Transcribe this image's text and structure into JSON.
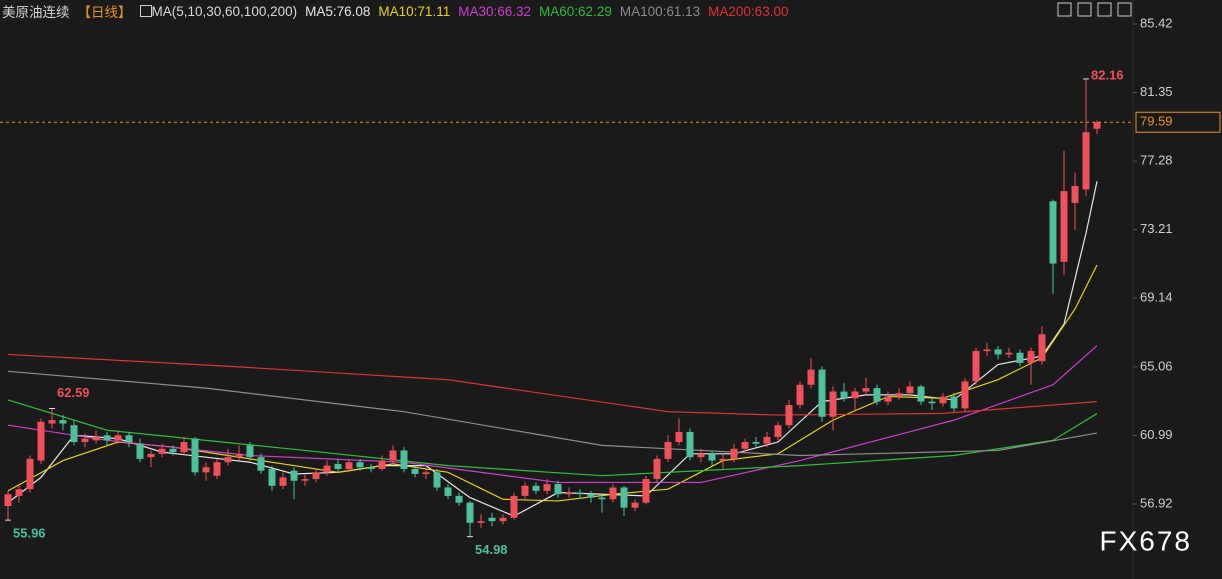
{
  "chart_data": {
    "type": "candlestick",
    "title": "美原油连续",
    "period": "【日线】",
    "indicator": "MA(5,10,30,60,100,200)",
    "watermark": "FX678",
    "up_color": "#f0505a",
    "down_color": "#4cc19e",
    "price_line_color": "#e8932a",
    "ylim": [
      53.0,
      85.78
    ],
    "yticks": [
      85.42,
      81.35,
      77.28,
      73.21,
      69.14,
      65.06,
      60.99,
      56.92
    ],
    "candles": [
      [
        56.8,
        57.7,
        55.96,
        57.5
      ],
      [
        57.4,
        58.0,
        57.0,
        57.8
      ],
      [
        57.8,
        59.8,
        57.6,
        59.6
      ],
      [
        59.5,
        62.0,
        59.3,
        61.8
      ],
      [
        61.7,
        62.59,
        61.4,
        61.9
      ],
      [
        61.9,
        62.2,
        61.3,
        61.7
      ],
      [
        61.6,
        61.9,
        60.4,
        60.6
      ],
      [
        60.6,
        61.1,
        60.3,
        60.8
      ],
      [
        60.7,
        61.3,
        60.5,
        60.9
      ],
      [
        61.0,
        61.2,
        60.4,
        60.7
      ],
      [
        60.7,
        61.3,
        60.5,
        61.0
      ],
      [
        61.0,
        61.2,
        60.3,
        60.6
      ],
      [
        60.5,
        60.8,
        59.4,
        59.6
      ],
      [
        59.7,
        60.1,
        59.1,
        59.9
      ],
      [
        59.9,
        60.5,
        59.7,
        60.2
      ],
      [
        60.2,
        60.4,
        59.8,
        60.0
      ],
      [
        60.0,
        60.9,
        59.8,
        60.6
      ],
      [
        60.8,
        60.9,
        58.6,
        58.8
      ],
      [
        58.8,
        59.4,
        58.3,
        59.1
      ],
      [
        58.6,
        59.6,
        58.4,
        59.4
      ],
      [
        59.4,
        60.2,
        59.2,
        59.7
      ],
      [
        59.7,
        60.4,
        59.5,
        59.9
      ],
      [
        60.4,
        60.6,
        59.5,
        59.7
      ],
      [
        59.7,
        59.9,
        58.7,
        58.9
      ],
      [
        59.0,
        59.2,
        57.7,
        58.0
      ],
      [
        58.0,
        58.8,
        57.8,
        58.5
      ],
      [
        58.9,
        59.1,
        57.2,
        58.3
      ],
      [
        58.3,
        58.7,
        58.0,
        58.4
      ],
      [
        58.4,
        59.0,
        58.2,
        58.8
      ],
      [
        58.8,
        59.5,
        58.6,
        59.2
      ],
      [
        59.3,
        59.6,
        58.8,
        59.0
      ],
      [
        59.0,
        59.6,
        58.8,
        59.4
      ],
      [
        59.4,
        59.6,
        58.9,
        59.1
      ],
      [
        59.1,
        59.3,
        58.8,
        59.0
      ],
      [
        59.0,
        59.8,
        58.9,
        59.5
      ],
      [
        59.5,
        60.4,
        59.3,
        60.1
      ],
      [
        60.1,
        60.3,
        58.8,
        59.0
      ],
      [
        59.0,
        59.2,
        58.5,
        58.7
      ],
      [
        58.7,
        59.1,
        58.4,
        58.8
      ],
      [
        58.8,
        59.0,
        57.7,
        57.9
      ],
      [
        57.9,
        58.1,
        57.2,
        57.4
      ],
      [
        57.4,
        57.6,
        56.8,
        57.0
      ],
      [
        57.0,
        57.1,
        54.98,
        55.8
      ],
      [
        55.8,
        56.3,
        55.5,
        55.9
      ],
      [
        56.1,
        56.4,
        55.6,
        55.9
      ],
      [
        55.9,
        56.3,
        55.7,
        56.1
      ],
      [
        56.1,
        57.6,
        56.0,
        57.4
      ],
      [
        57.4,
        58.2,
        57.2,
        58.0
      ],
      [
        58.0,
        58.2,
        57.5,
        57.7
      ],
      [
        57.7,
        58.4,
        57.5,
        58.1
      ],
      [
        58.1,
        58.3,
        57.3,
        57.5
      ],
      [
        57.5,
        57.9,
        57.3,
        57.6
      ],
      [
        57.6,
        57.8,
        57.2,
        57.5
      ],
      [
        57.5,
        57.7,
        57.0,
        57.3
      ],
      [
        57.3,
        57.5,
        56.4,
        57.2
      ],
      [
        57.2,
        58.1,
        57.0,
        57.9
      ],
      [
        57.9,
        58.0,
        56.2,
        56.7
      ],
      [
        56.7,
        57.2,
        56.5,
        57.0
      ],
      [
        57.0,
        58.6,
        56.9,
        58.4
      ],
      [
        58.4,
        59.8,
        58.2,
        59.6
      ],
      [
        59.6,
        61.0,
        59.4,
        60.6
      ],
      [
        60.6,
        62.0,
        60.4,
        61.2
      ],
      [
        61.2,
        61.4,
        59.5,
        59.7
      ],
      [
        59.7,
        60.2,
        59.4,
        59.9
      ],
      [
        59.9,
        60.1,
        59.2,
        59.5
      ],
      [
        59.5,
        59.9,
        59.0,
        59.6
      ],
      [
        59.6,
        60.5,
        59.4,
        60.2
      ],
      [
        60.2,
        60.8,
        60.0,
        60.6
      ],
      [
        60.6,
        60.9,
        60.3,
        60.5
      ],
      [
        60.5,
        61.2,
        60.3,
        60.9
      ],
      [
        60.9,
        61.8,
        60.7,
        61.6
      ],
      [
        61.6,
        63.1,
        61.4,
        62.8
      ],
      [
        62.8,
        64.2,
        62.6,
        64.0
      ],
      [
        64.0,
        65.6,
        63.8,
        64.9
      ],
      [
        64.9,
        65.1,
        61.8,
        62.1
      ],
      [
        62.1,
        63.9,
        61.3,
        63.6
      ],
      [
        63.6,
        64.1,
        63.0,
        63.2
      ],
      [
        63.2,
        63.8,
        62.4,
        63.6
      ],
      [
        63.6,
        64.4,
        63.4,
        63.8
      ],
      [
        63.8,
        64.0,
        62.8,
        63.0
      ],
      [
        63.0,
        63.6,
        62.8,
        63.3
      ],
      [
        63.3,
        63.8,
        63.1,
        63.5
      ],
      [
        63.5,
        64.2,
        63.3,
        63.9
      ],
      [
        63.9,
        64.0,
        62.8,
        63.0
      ],
      [
        63.0,
        63.2,
        62.5,
        62.9
      ],
      [
        62.9,
        63.5,
        62.7,
        63.3
      ],
      [
        63.3,
        63.5,
        62.4,
        62.6
      ],
      [
        62.6,
        64.4,
        62.4,
        64.2
      ],
      [
        64.2,
        66.2,
        64.0,
        66.0
      ],
      [
        66.0,
        66.5,
        65.7,
        66.1
      ],
      [
        66.1,
        66.3,
        65.5,
        65.8
      ],
      [
        65.8,
        66.2,
        65.6,
        65.9
      ],
      [
        65.9,
        66.1,
        65.1,
        65.3
      ],
      [
        65.3,
        66.2,
        64.0,
        66.0
      ],
      [
        65.4,
        67.5,
        65.2,
        67.0
      ],
      [
        74.9,
        75.0,
        69.4,
        71.2
      ],
      [
        71.3,
        77.9,
        70.5,
        75.5
      ],
      [
        74.8,
        76.6,
        73.2,
        75.8
      ],
      [
        75.6,
        82.16,
        75.2,
        79.0
      ],
      [
        79.2,
        79.7,
        78.9,
        79.59
      ]
    ],
    "series": [
      {
        "name": "MA5:76.08",
        "color": "#e6e6e6",
        "x": [
          0,
          3,
          6,
          10,
          14,
          18,
          22,
          26,
          30,
          34,
          38,
          42,
          46,
          50,
          54,
          58,
          62,
          66,
          70,
          74,
          78,
          82,
          86,
          90,
          94,
          96,
          98,
          99
        ],
        "values": [
          57.0,
          58.5,
          61.0,
          60.8,
          60.0,
          59.7,
          59.4,
          58.7,
          58.8,
          59.2,
          59.2,
          57.3,
          56.2,
          57.6,
          57.5,
          57.4,
          59.9,
          59.9,
          60.6,
          63.0,
          63.4,
          63.4,
          63.1,
          65.2,
          65.7,
          67.6,
          73.0,
          76.08
        ]
      },
      {
        "name": "MA10:71.11",
        "color": "#e6d21e",
        "x": [
          0,
          5,
          10,
          15,
          20,
          25,
          30,
          35,
          40,
          45,
          50,
          55,
          60,
          65,
          70,
          75,
          80,
          85,
          90,
          94,
          97,
          99
        ],
        "values": [
          57.7,
          59.5,
          60.6,
          60.3,
          59.8,
          59.3,
          58.8,
          59.3,
          58.8,
          57.2,
          57.1,
          57.5,
          57.8,
          59.5,
          59.9,
          61.9,
          63.3,
          63.2,
          64.3,
          65.6,
          68.5,
          71.11
        ]
      },
      {
        "name": "MA30:66.32",
        "color": "#d23cd2",
        "x": [
          0,
          9,
          22,
          36,
          50,
          63,
          72,
          86,
          95,
          99
        ],
        "values": [
          61.6,
          60.7,
          59.8,
          59.4,
          58.2,
          58.2,
          59.5,
          61.9,
          64.0,
          66.32
        ]
      },
      {
        "name": "MA60:62.29",
        "color": "#2ebd3a",
        "x": [
          0,
          9,
          27,
          40,
          54,
          72,
          86,
          95,
          99
        ],
        "values": [
          63.1,
          61.3,
          60.1,
          59.2,
          58.6,
          59.2,
          59.8,
          60.7,
          62.29
        ]
      },
      {
        "name": "MA100:61.13",
        "color": "#8c8c8c",
        "x": [
          0,
          18,
          36,
          54,
          72,
          90,
          99
        ],
        "values": [
          64.8,
          63.8,
          62.4,
          60.4,
          59.8,
          60.1,
          61.13
        ]
      },
      {
        "name": "MA200:63.00",
        "color": "#e03434",
        "x": [
          0,
          20,
          40,
          60,
          70,
          85,
          99
        ],
        "values": [
          65.8,
          65.1,
          64.3,
          62.4,
          62.2,
          62.3,
          63.0
        ]
      }
    ]
  }
}
